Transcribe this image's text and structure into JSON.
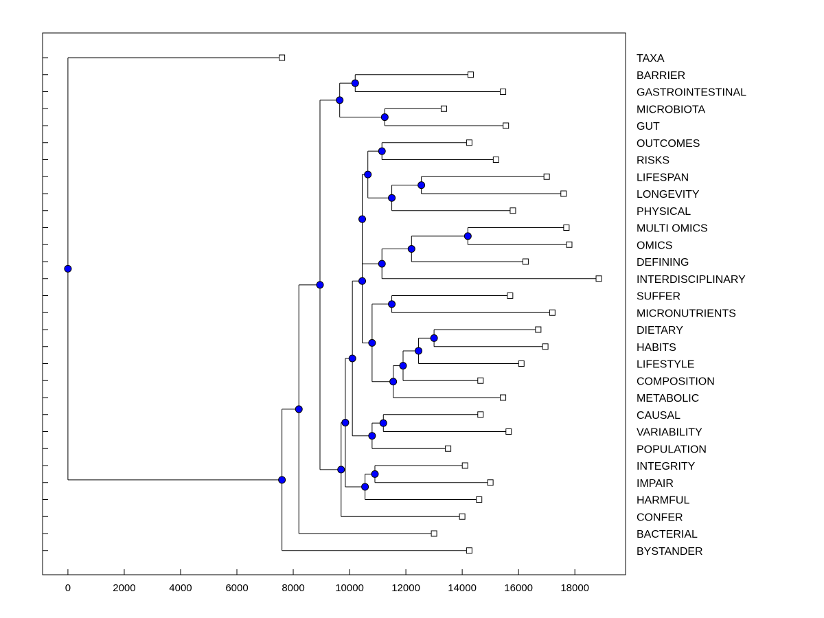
{
  "chart_data": {
    "type": "dendrogram",
    "x_ticks": [
      0,
      2000,
      4000,
      6000,
      8000,
      10000,
      12000,
      14000,
      16000,
      18000
    ],
    "xlim": [
      -900,
      19800
    ],
    "colors": {
      "node_fill": "#0000ff",
      "line": "#000000",
      "leaf_fill": "#ffffff"
    },
    "leaves": [
      {
        "label": "TAXA",
        "value": 7600
      },
      {
        "label": "BARRIER",
        "value": 14300
      },
      {
        "label": "GASTROINTESTINAL",
        "value": 15450
      },
      {
        "label": "MICROBIOTA",
        "value": 13350
      },
      {
        "label": "GUT",
        "value": 15550
      },
      {
        "label": "OUTCOMES",
        "value": 14250
      },
      {
        "label": "RISKS",
        "value": 15200
      },
      {
        "label": "LIFESPAN",
        "value": 17000
      },
      {
        "label": "LONGEVITY",
        "value": 17600
      },
      {
        "label": "PHYSICAL",
        "value": 15800
      },
      {
        "label": "MULTI OMICS",
        "value": 17700
      },
      {
        "label": "OMICS",
        "value": 17800
      },
      {
        "label": "DEFINING",
        "value": 16250
      },
      {
        "label": "INTERDISCIPLINARY",
        "value": 18850
      },
      {
        "label": "SUFFER",
        "value": 15700
      },
      {
        "label": "MICRONUTRIENTS",
        "value": 17200
      },
      {
        "label": "DIETARY",
        "value": 16700
      },
      {
        "label": "HABITS",
        "value": 16950
      },
      {
        "label": "LIFESTYLE",
        "value": 16100
      },
      {
        "label": "COMPOSITION",
        "value": 14650
      },
      {
        "label": "METABOLIC",
        "value": 15450
      },
      {
        "label": "CAUSAL",
        "value": 14650
      },
      {
        "label": "VARIABILITY",
        "value": 15650
      },
      {
        "label": "POPULATION",
        "value": 13500
      },
      {
        "label": "INTEGRITY",
        "value": 14100
      },
      {
        "label": "IMPAIR",
        "value": 15000
      },
      {
        "label": "HARMFUL",
        "value": 14600
      },
      {
        "label": "CONFER",
        "value": 14000
      },
      {
        "label": "BACTERIAL",
        "value": 13000
      },
      {
        "label": "BYSTANDER",
        "value": 14250
      }
    ],
    "merges": [
      {
        "id": "n1",
        "value": 10200,
        "children": [
          "L1",
          "L2"
        ]
      },
      {
        "id": "n2",
        "value": 11250,
        "children": [
          "L3",
          "L4"
        ]
      },
      {
        "id": "n3",
        "value": 9650,
        "children": [
          "n1",
          "n2"
        ]
      },
      {
        "id": "n4",
        "value": 11150,
        "children": [
          "L5",
          "L6"
        ]
      },
      {
        "id": "n5",
        "value": 12550,
        "children": [
          "L7",
          "L8"
        ]
      },
      {
        "id": "n6",
        "value": 11500,
        "children": [
          "n5",
          "L9"
        ]
      },
      {
        "id": "n7",
        "value": 10650,
        "children": [
          "n4",
          "n6"
        ]
      },
      {
        "id": "n8",
        "value": 14200,
        "children": [
          "L10",
          "L11"
        ]
      },
      {
        "id": "n9",
        "value": 12200,
        "children": [
          "n8",
          "L12"
        ]
      },
      {
        "id": "n10",
        "value": 11150,
        "children": [
          "n9",
          "L13"
        ]
      },
      {
        "id": "n11",
        "value": 10450,
        "children": [
          "n7",
          "n10"
        ]
      },
      {
        "id": "n12",
        "value": 11500,
        "children": [
          "L14",
          "L15"
        ]
      },
      {
        "id": "n13",
        "value": 13000,
        "children": [
          "L16",
          "L17"
        ]
      },
      {
        "id": "n14",
        "value": 12450,
        "children": [
          "n13",
          "L18"
        ]
      },
      {
        "id": "n15",
        "value": 11900,
        "children": [
          "n14",
          "L19"
        ]
      },
      {
        "id": "n16",
        "value": 11550,
        "children": [
          "n15",
          "L20"
        ]
      },
      {
        "id": "n17",
        "value": 10800,
        "children": [
          "n12",
          "n16"
        ]
      },
      {
        "id": "n18",
        "value": 10450,
        "children": [
          "n11",
          "n17"
        ]
      },
      {
        "id": "n19",
        "value": 11200,
        "children": [
          "L21",
          "L22"
        ]
      },
      {
        "id": "n20",
        "value": 10800,
        "children": [
          "n19",
          "L23"
        ]
      },
      {
        "id": "n21",
        "value": 10100,
        "children": [
          "n18",
          "n20"
        ]
      },
      {
        "id": "n22",
        "value": 10900,
        "children": [
          "L24",
          "L25"
        ]
      },
      {
        "id": "n23",
        "value": 10550,
        "children": [
          "n22",
          "L26"
        ]
      },
      {
        "id": "n24",
        "value": 9850,
        "children": [
          "n21",
          "n23"
        ]
      },
      {
        "id": "n25",
        "value": 9700,
        "children": [
          "n24",
          "L27"
        ]
      },
      {
        "id": "n26",
        "value": 8950,
        "children": [
          "n3",
          "n25"
        ]
      },
      {
        "id": "n27",
        "value": 8200,
        "children": [
          "n26",
          "L28"
        ]
      },
      {
        "id": "n28",
        "value": 7600,
        "children": [
          "n27",
          "L29"
        ]
      },
      {
        "id": "n29",
        "value": 0,
        "children": [
          "L0",
          "n28"
        ]
      }
    ]
  }
}
